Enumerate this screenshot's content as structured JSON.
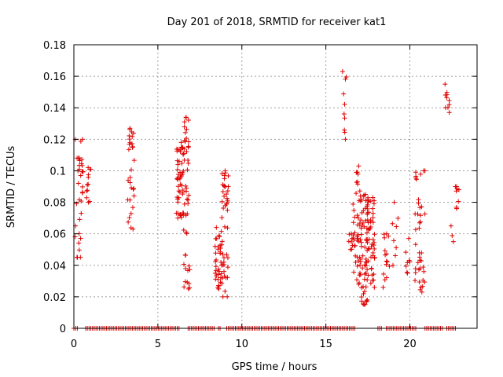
{
  "chart_data": {
    "type": "scatter",
    "title": "Day 201 of 2018, SRMTID for receiver kat1",
    "xlabel": "GPS time / hours",
    "ylabel": "SRMTID / TECUs",
    "xlim": [
      0,
      24
    ],
    "ylim": [
      0,
      0.18
    ],
    "xticks": [
      0,
      5,
      10,
      15,
      20
    ],
    "xtick_labels": [
      "0",
      "5",
      "10",
      "15",
      "20"
    ],
    "yticks": [
      0,
      0.02,
      0.04,
      0.06,
      0.08,
      0.1,
      0.12,
      0.14,
      0.16,
      0.18
    ],
    "ytick_labels": [
      "0",
      "0.02",
      "0.04",
      "0.06",
      "0.08",
      "0.1",
      "0.12",
      "0.14",
      "0.16",
      "0.18"
    ],
    "grid": true,
    "legend": "none",
    "marker": "plus",
    "color": "#e00000",
    "clusters": [
      {
        "x_range": [
          0.05,
          0.55
        ],
        "y_range": [
          0.045,
          0.12
        ],
        "count": 35
      },
      {
        "x_range": [
          0.75,
          1.05
        ],
        "y_range": [
          0.08,
          0.102
        ],
        "count": 12
      },
      {
        "x_range": [
          3.2,
          3.6
        ],
        "y_range": [
          0.063,
          0.127
        ],
        "count": 30
      },
      {
        "x_range": [
          6.1,
          6.5
        ],
        "y_range": [
          0.07,
          0.118
        ],
        "count": 45
      },
      {
        "x_range": [
          6.5,
          6.9
        ],
        "y_range": [
          0.025,
          0.134
        ],
        "count": 50
      },
      {
        "x_range": [
          8.4,
          8.8
        ],
        "y_range": [
          0.025,
          0.064
        ],
        "count": 35
      },
      {
        "x_range": [
          8.8,
          9.2
        ],
        "y_range": [
          0.02,
          0.1
        ],
        "count": 45
      },
      {
        "x_range": [
          15.95,
          16.25
        ],
        "y_range": [
          0.12,
          0.163
        ],
        "count": 10
      },
      {
        "x_range": [
          16.35,
          16.65
        ],
        "y_range": [
          0.05,
          0.06
        ],
        "count": 8
      },
      {
        "x_range": [
          16.6,
          17.1
        ],
        "y_range": [
          0.028,
          0.103
        ],
        "count": 50
      },
      {
        "x_range": [
          17.1,
          17.5
        ],
        "y_range": [
          0.015,
          0.085
        ],
        "count": 55
      },
      {
        "x_range": [
          17.5,
          17.9
        ],
        "y_range": [
          0.026,
          0.083
        ],
        "count": 45
      },
      {
        "x_range": [
          18.4,
          18.8
        ],
        "y_range": [
          0.026,
          0.06
        ],
        "count": 15
      },
      {
        "x_range": [
          18.9,
          19.3
        ],
        "y_range": [
          0.04,
          0.08
        ],
        "count": 8
      },
      {
        "x_range": [
          19.7,
          20.0
        ],
        "y_range": [
          0.035,
          0.057
        ],
        "count": 8
      },
      {
        "x_range": [
          20.3,
          20.9
        ],
        "y_range": [
          0.023,
          0.1
        ],
        "count": 40
      },
      {
        "x_range": [
          22.05,
          22.35
        ],
        "y_range": [
          0.137,
          0.155
        ],
        "count": 10
      },
      {
        "x_range": [
          22.4,
          22.6
        ],
        "y_range": [
          0.055,
          0.065
        ],
        "count": 3
      },
      {
        "x_range": [
          22.7,
          22.95
        ],
        "y_range": [
          0.076,
          0.09
        ],
        "count": 8
      }
    ],
    "zero_segments": [
      [
        0.0,
        0.25
      ],
      [
        0.7,
        6.3
      ],
      [
        6.8,
        8.4
      ],
      [
        8.6,
        8.8
      ],
      [
        9.1,
        16.8
      ],
      [
        18.1,
        18.4
      ],
      [
        18.6,
        20.4
      ],
      [
        20.9,
        22.0
      ],
      [
        22.2,
        22.8
      ]
    ]
  }
}
